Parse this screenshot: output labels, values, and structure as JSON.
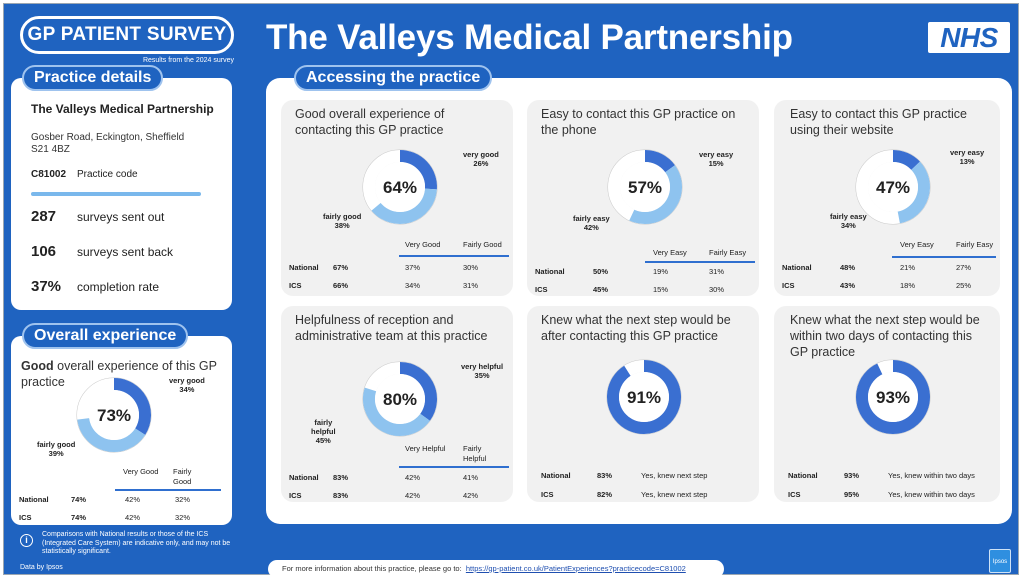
{
  "header": {
    "survey_label": "GP PATIENT SURVEY",
    "survey_sub": "Results from the 2024 survey",
    "title": "The Valleys Medical Partnership",
    "nhs_logo": "NHS"
  },
  "practice": {
    "section_label": "Practice details",
    "name": "The Valleys Medical Partnership",
    "address1": "Gosber Road, Eckington, Sheffield",
    "address2": "S21 4BZ",
    "code": "C81002",
    "code_label": "Practice code",
    "stats": [
      {
        "num": "287",
        "label": "surveys sent out"
      },
      {
        "num": "106",
        "label": "surveys sent back"
      },
      {
        "num": "37%",
        "label": "completion rate"
      }
    ]
  },
  "overall": {
    "section_label": "Overall experience",
    "title_bold": "Good",
    "title_rest": " overall experience of this GP practice",
    "pct": "73%",
    "ann_top": [
      "very good",
      "34%"
    ],
    "ann_bottom": [
      "fairly good",
      "39%"
    ],
    "col1": "Very Good",
    "col2": "Fairly Good",
    "rows": [
      {
        "label": "National",
        "total": "74%",
        "c1": "42%",
        "c2": "32%"
      },
      {
        "label": "ICS",
        "total": "74%",
        "c1": "42%",
        "c2": "32%"
      }
    ],
    "values": {
      "top": 34,
      "bottom": 39
    }
  },
  "access": {
    "section_label": "Accessing the practice",
    "cards": [
      {
        "title": "Good overall experience of contacting this GP practice",
        "pct": "64%",
        "ann_top": [
          "very good",
          "26%"
        ],
        "ann_bottom": [
          "fairly good",
          "38%"
        ],
        "col1": "Very Good",
        "col2": "Fairly Good",
        "rows": [
          {
            "label": "National",
            "total": "67%",
            "c1": "37%",
            "c2": "30%"
          },
          {
            "label": "ICS",
            "total": "66%",
            "c1": "34%",
            "c2": "31%"
          }
        ],
        "values": {
          "top": 26,
          "bottom": 38
        }
      },
      {
        "title": "Easy to contact this GP practice on the phone",
        "pct": "57%",
        "ann_top": [
          "very easy",
          "15%"
        ],
        "ann_bottom": [
          "fairly easy",
          "42%"
        ],
        "col1": "Very Easy",
        "col2": "Fairly Easy",
        "rows": [
          {
            "label": "National",
            "total": "50%",
            "c1": "19%",
            "c2": "31%"
          },
          {
            "label": "ICS",
            "total": "45%",
            "c1": "15%",
            "c2": "30%"
          }
        ],
        "values": {
          "top": 15,
          "bottom": 42
        }
      },
      {
        "title": "Easy to contact this GP practice using their website",
        "pct": "47%",
        "ann_top": [
          "very easy",
          "13%"
        ],
        "ann_bottom": [
          "fairly easy",
          "34%"
        ],
        "col1": "Very Easy",
        "col2": "Fairly Easy",
        "rows": [
          {
            "label": "National",
            "total": "48%",
            "c1": "21%",
            "c2": "27%"
          },
          {
            "label": "ICS",
            "total": "43%",
            "c1": "18%",
            "c2": "25%"
          }
        ],
        "values": {
          "top": 13,
          "bottom": 34
        }
      },
      {
        "title": "Helpfulness of reception and administrative team at this practice",
        "pct": "80%",
        "ann_top": [
          "very helpful",
          "35%"
        ],
        "ann_bottom": [
          "fairly",
          "helpful",
          "45%"
        ],
        "col1": "Very Helpful",
        "col2": "Fairly Helpful",
        "rows": [
          {
            "label": "National",
            "total": "83%",
            "c1": "42%",
            "c2": "41%"
          },
          {
            "label": "ICS",
            "total": "83%",
            "c1": "42%",
            "c2": "42%"
          }
        ],
        "values": {
          "top": 35,
          "bottom": 45
        }
      },
      {
        "title": "Knew what the next step would be after contacting this GP practice",
        "pct": "91%",
        "rows": [
          {
            "label": "National",
            "total": "83%",
            "text": "Yes, knew next step"
          },
          {
            "label": "ICS",
            "total": "82%",
            "text": "Yes, knew next step"
          }
        ],
        "values": {
          "single": 91
        }
      },
      {
        "title": "Knew what the next step would be within two days of contacting this GP practice",
        "pct": "93%",
        "rows": [
          {
            "label": "National",
            "total": "93%",
            "text": "Yes, knew within two days"
          },
          {
            "label": "ICS",
            "total": "95%",
            "text": "Yes, knew within two days"
          }
        ],
        "values": {
          "single": 93
        }
      }
    ]
  },
  "footer": {
    "more_info": "For more information about this practice, please go to:",
    "link": "https://gp-patient.co.uk/PatientExperiences?practicecode=C81002",
    "note": "Comparisons with National results or those of the ICS (Integrated Care System) are indicative only, and may not be statistically significant.",
    "data_by": "Data by Ipsos",
    "ipsos_logo": "Ipsos"
  },
  "colors": {
    "brand": "#1f63c0",
    "dark_segment": "#3a6fd1",
    "light_segment": "#8ec3ef",
    "empty_segment": "#ffffff"
  }
}
